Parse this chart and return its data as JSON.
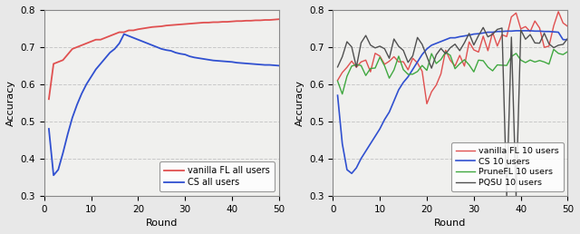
{
  "xlabel": "Round",
  "ylabel": "Accuracy",
  "xlim": [
    0,
    50
  ],
  "ylim": [
    0.3,
    0.8
  ],
  "yticks": [
    0.3,
    0.4,
    0.5,
    0.6,
    0.7,
    0.8
  ],
  "xticks": [
    0,
    10,
    20,
    30,
    40,
    50
  ],
  "grid_color": "#c8c8c8",
  "face_color": "#e8e8e8",
  "ax_face_color": "#f0f0ee",
  "spine_color": "#888888",
  "colors": {
    "red": "#e05050",
    "blue": "#3050d0",
    "green": "#40a840",
    "dark": "#505050"
  },
  "left_legend": [
    "vanilla FL all users",
    "CS all users"
  ],
  "right_legend": [
    "vanilla FL 10 users",
    "CS 10 users",
    "PruneFL 10 users",
    "PQSU 10 users"
  ],
  "vfl_all": [
    0.56,
    0.655,
    0.66,
    0.665,
    0.68,
    0.695,
    0.7,
    0.705,
    0.71,
    0.715,
    0.72,
    0.72,
    0.725,
    0.73,
    0.735,
    0.74,
    0.74,
    0.745,
    0.745,
    0.748,
    0.75,
    0.752,
    0.754,
    0.755,
    0.756,
    0.758,
    0.759,
    0.76,
    0.761,
    0.762,
    0.763,
    0.764,
    0.765,
    0.766,
    0.766,
    0.767,
    0.767,
    0.768,
    0.768,
    0.769,
    0.77,
    0.77,
    0.771,
    0.771,
    0.772,
    0.772,
    0.773,
    0.773,
    0.774,
    0.775
  ],
  "cs_all": [
    0.48,
    0.355,
    0.37,
    0.415,
    0.465,
    0.51,
    0.545,
    0.575,
    0.6,
    0.62,
    0.64,
    0.655,
    0.67,
    0.685,
    0.695,
    0.71,
    0.735,
    0.73,
    0.725,
    0.72,
    0.715,
    0.71,
    0.705,
    0.7,
    0.695,
    0.692,
    0.69,
    0.685,
    0.682,
    0.68,
    0.675,
    0.672,
    0.67,
    0.668,
    0.666,
    0.664,
    0.663,
    0.662,
    0.661,
    0.66,
    0.658,
    0.657,
    0.656,
    0.655,
    0.654,
    0.653,
    0.652,
    0.652,
    0.651,
    0.65
  ],
  "vfl_10": [
    0.58,
    0.64,
    0.645,
    0.655,
    0.66,
    0.66,
    0.665,
    0.665,
    0.665,
    0.665,
    0.665,
    0.665,
    0.665,
    0.665,
    0.665,
    0.665,
    0.66,
    0.655,
    0.63,
    0.575,
    0.55,
    0.595,
    0.635,
    0.655,
    0.665,
    0.675,
    0.685,
    0.69,
    0.695,
    0.7,
    0.7,
    0.71,
    0.72,
    0.73,
    0.74,
    0.745,
    0.75,
    0.755,
    0.76,
    0.755,
    0.74,
    0.745,
    0.76,
    0.765,
    0.73,
    0.735,
    0.75,
    0.755,
    0.76,
    0.765
  ],
  "cs_10": [
    0.57,
    0.44,
    0.37,
    0.36,
    0.375,
    0.4,
    0.42,
    0.44,
    0.46,
    0.48,
    0.505,
    0.525,
    0.555,
    0.585,
    0.605,
    0.62,
    0.64,
    0.66,
    0.68,
    0.695,
    0.705,
    0.71,
    0.715,
    0.72,
    0.725,
    0.725,
    0.728,
    0.73,
    0.732,
    0.735,
    0.736,
    0.738,
    0.74,
    0.74,
    0.742,
    0.742,
    0.743,
    0.743,
    0.744,
    0.744,
    0.744,
    0.744,
    0.743,
    0.743,
    0.742,
    0.742,
    0.741,
    0.74,
    0.72,
    0.72
  ],
  "prunefl_10": [
    0.58,
    0.57,
    0.62,
    0.645,
    0.655,
    0.655,
    0.645,
    0.635,
    0.645,
    0.655,
    0.655,
    0.645,
    0.64,
    0.65,
    0.645,
    0.64,
    0.645,
    0.65,
    0.655,
    0.655,
    0.66,
    0.66,
    0.665,
    0.665,
    0.655,
    0.645,
    0.65,
    0.655,
    0.655,
    0.66,
    0.655,
    0.65,
    0.64,
    0.65,
    0.655,
    0.66,
    0.655,
    0.655,
    0.66,
    0.655,
    0.65,
    0.655,
    0.66,
    0.665,
    0.67,
    0.655,
    0.66,
    0.67,
    0.685,
    0.695
  ],
  "pqsu_10": [
    0.655,
    0.665,
    0.715,
    0.695,
    0.63,
    0.705,
    0.715,
    0.695,
    0.68,
    0.715,
    0.705,
    0.685,
    0.715,
    0.705,
    0.68,
    0.655,
    0.675,
    0.7,
    0.7,
    0.675,
    0.655,
    0.665,
    0.685,
    0.695,
    0.7,
    0.705,
    0.71,
    0.715,
    0.72,
    0.725,
    0.725,
    0.73,
    0.735,
    0.74,
    0.745,
    0.745,
    0.3,
    0.745,
    0.3,
    0.745,
    0.725,
    0.72,
    0.715,
    0.715,
    0.715,
    0.71,
    0.71,
    0.705,
    0.71,
    0.715
  ]
}
